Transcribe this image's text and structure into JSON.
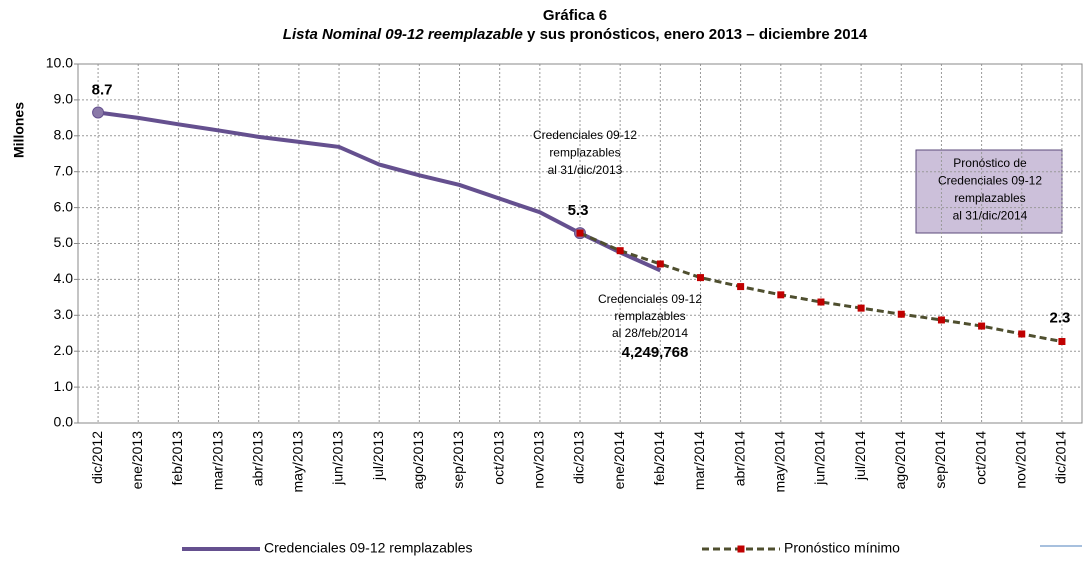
{
  "chart_data": {
    "type": "line",
    "title": "Gráfica 6",
    "subtitle_italic": "Lista Nominal 09-12 reemplazable",
    "subtitle_rest": " y sus pronósticos, enero 2013 – diciembre 2014",
    "y_label": "Millones",
    "categories": [
      "dic/2012",
      "ene/2013",
      "feb/2013",
      "mar/2013",
      "abr/2013",
      "may/2013",
      "jun/2013",
      "jul/2013",
      "ago/2013",
      "sep/2013",
      "oct/2013",
      "nov/2013",
      "dic/2013",
      "ene/2014",
      "feb/2014",
      "mar/2014",
      "abr/2014",
      "may/2014",
      "jun/2014",
      "jul/2014",
      "ago/2014",
      "sep/2014",
      "oct/2014",
      "nov/2014",
      "dic/2014"
    ],
    "series": [
      {
        "name": "Credenciales 09-12 remplazables",
        "color": "#65508f",
        "marker": "circle",
        "values": [
          8.65,
          8.5,
          8.32,
          8.15,
          7.97,
          7.83,
          7.69,
          7.2,
          6.9,
          6.63,
          6.25,
          5.87,
          5.29,
          4.75,
          4.249768,
          null,
          null,
          null,
          null,
          null,
          null,
          null,
          null,
          null,
          null
        ],
        "value_labels": [
          "8.7",
          null,
          null,
          null,
          null,
          null,
          null,
          null,
          null,
          null,
          null,
          null,
          "5.3",
          null,
          null,
          null,
          null,
          null,
          null,
          null,
          null,
          null,
          null,
          null,
          null
        ]
      },
      {
        "name": "Pronóstico mínimo",
        "color": "#4f4f2f",
        "marker_color": "#c00000",
        "marker": "square",
        "dashed": true,
        "values": [
          null,
          null,
          null,
          null,
          null,
          null,
          null,
          null,
          null,
          null,
          null,
          null,
          5.29,
          4.8,
          4.43,
          4.05,
          3.8,
          3.57,
          3.37,
          3.2,
          3.03,
          2.87,
          2.7,
          2.48,
          2.27
        ],
        "value_labels": [
          null,
          null,
          null,
          null,
          null,
          null,
          null,
          null,
          null,
          null,
          null,
          null,
          null,
          null,
          null,
          null,
          null,
          null,
          null,
          null,
          null,
          null,
          null,
          null,
          "2.3"
        ]
      }
    ],
    "ylim": [
      0,
      10
    ],
    "yticks": [
      {
        "value": 0,
        "label": "0.0"
      },
      {
        "value": 1,
        "label": "1.0"
      },
      {
        "value": 2,
        "label": "2.0"
      },
      {
        "value": 3,
        "label": "3.0"
      },
      {
        "value": 4,
        "label": "4.0"
      },
      {
        "value": 5,
        "label": "5.0"
      },
      {
        "value": 6,
        "label": "6.0"
      },
      {
        "value": 7,
        "label": "7.0"
      },
      {
        "value": 8,
        "label": "8.0"
      },
      {
        "value": 9,
        "label": "9.0"
      },
      {
        "value": 10,
        "label": "10.0"
      }
    ],
    "grid": true,
    "legend": "bottom",
    "annotations": [
      {
        "lines": [
          "Credenciales 09-12",
          "remplazables",
          "al 31/dic/2013"
        ]
      },
      {
        "lines": [
          "Credenciales 09-12",
          "remplazables",
          "al 28/feb/2014"
        ]
      },
      {
        "lines": [
          "4,249,768"
        ]
      },
      {
        "lines": [
          "Pronóstico de",
          "Credenciales 09-12",
          "remplazables",
          "al 31/dic/2014"
        ]
      }
    ]
  }
}
